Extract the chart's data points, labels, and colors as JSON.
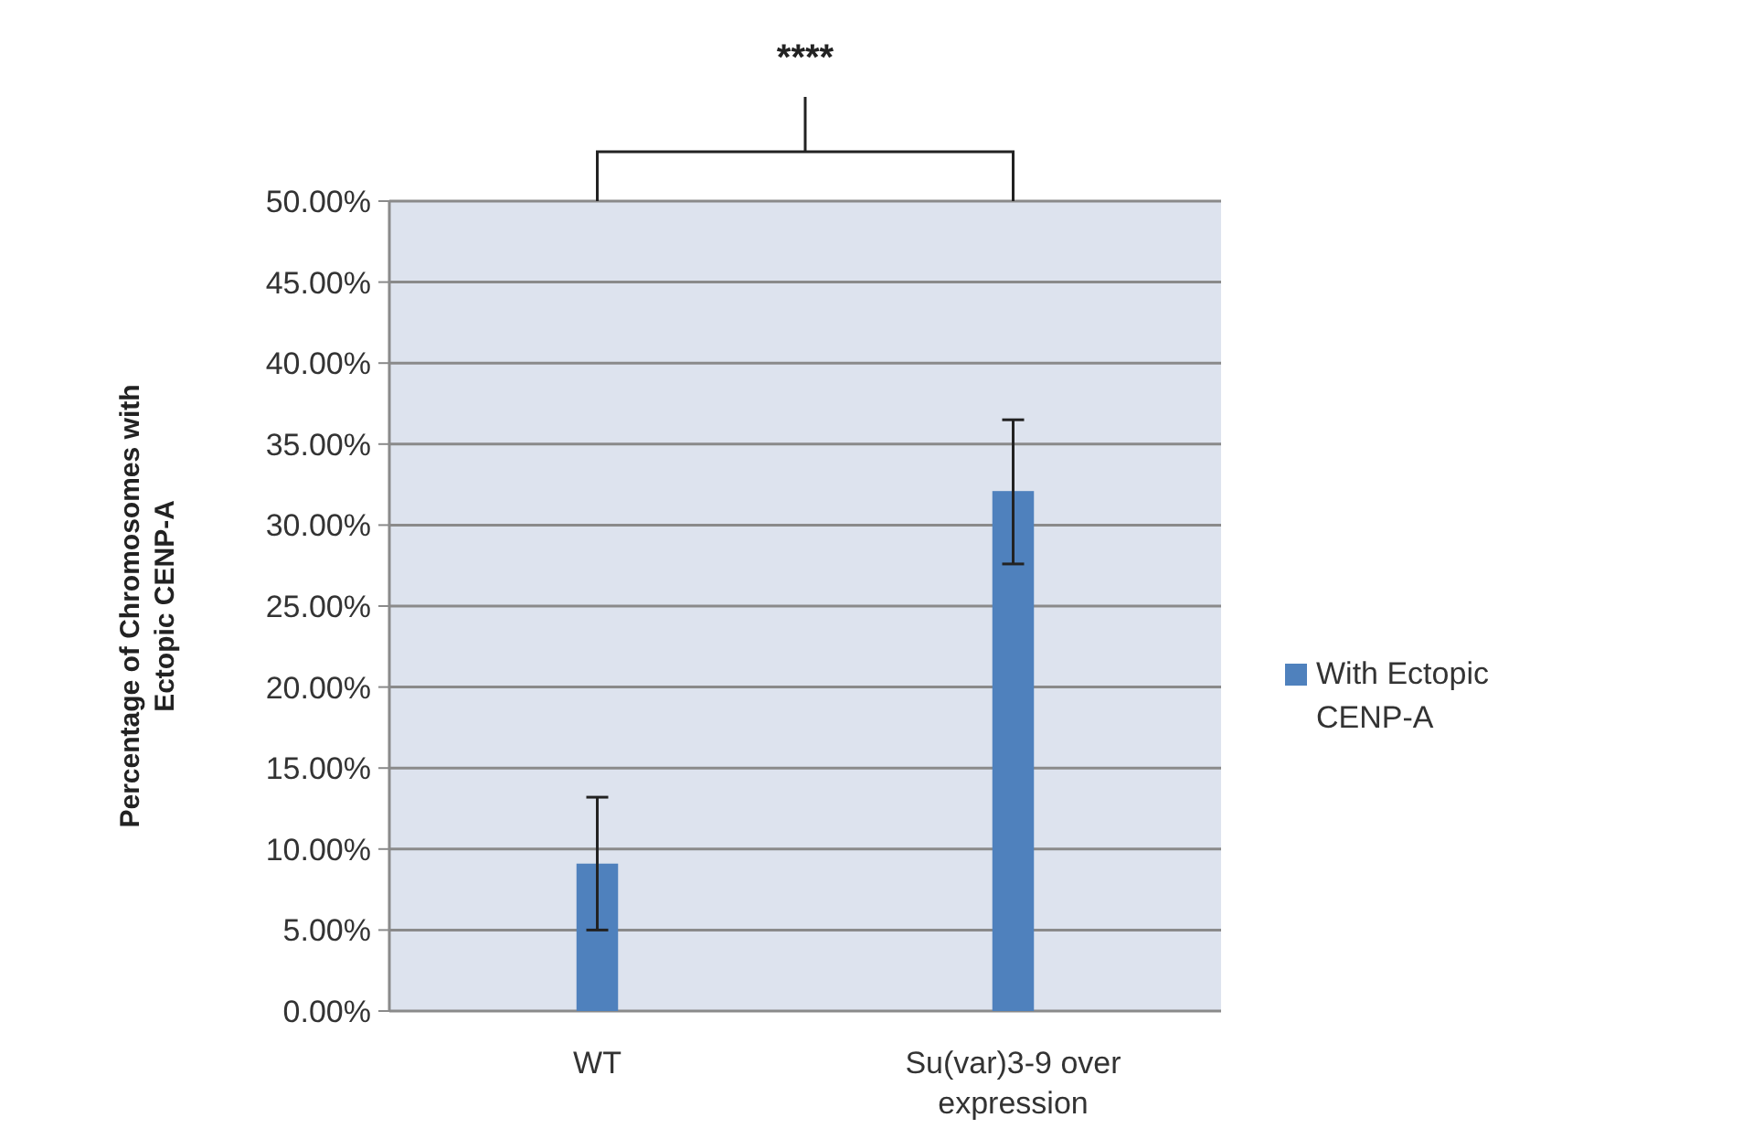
{
  "chart_data": {
    "type": "bar",
    "ylabel": "Percentage of Chromosomes with Ectopic CENP-A",
    "categories": [
      "WT",
      "Su(var)3-9 over expression"
    ],
    "series": [
      {
        "name": "With Ectopic CENP-A",
        "color": "#4f81bd",
        "values": [
          9.1,
          32.1
        ],
        "errors": [
          [
            5.0,
            13.2
          ],
          [
            27.6,
            36.5
          ]
        ]
      }
    ],
    "ylim": [
      0,
      50
    ],
    "yticks": [
      {
        "value": 0,
        "label": "0.00%"
      },
      {
        "value": 5,
        "label": "5.00%"
      },
      {
        "value": 10,
        "label": "10.00%"
      },
      {
        "value": 15,
        "label": "15.00%"
      },
      {
        "value": 20,
        "label": "20.00%"
      },
      {
        "value": 25,
        "label": "25.00%"
      },
      {
        "value": 30,
        "label": "30.00%"
      },
      {
        "value": 35,
        "label": "35.00%"
      },
      {
        "value": 40,
        "label": "40.00%"
      },
      {
        "value": 45,
        "label": "45.00%"
      },
      {
        "value": 50,
        "label": "50.00%"
      }
    ],
    "grid": "y",
    "legend": "right",
    "annotations": [
      "****"
    ]
  }
}
